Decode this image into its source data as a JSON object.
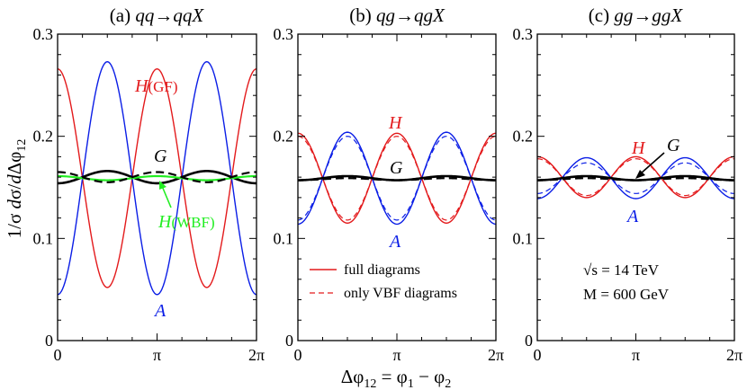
{
  "figure": {
    "ylabel": "1/σ dσ/dΔφ12",
    "xlabel": "Δφ12 = φ1 − φ2",
    "colors": {
      "H": "#e31a1c",
      "A": "#0b1ee6",
      "G": "#000000",
      "HVBF": "#22ee22"
    }
  },
  "chart_data": [
    {
      "type": "line",
      "panel": "a",
      "title": "(a) qq→qqX",
      "xlim": [
        0,
        6.2832
      ],
      "ylim": [
        0,
        0.3
      ],
      "xticks": [
        "0",
        "π",
        "2π"
      ],
      "yticks": [
        "0",
        "0.1",
        "0.2",
        "0.3"
      ],
      "series": [
        {
          "name": "H(GF)",
          "model": "cos2",
          "params": {
            "base": 0.159,
            "amp": 0.107
          },
          "color": "#e31a1c",
          "width": 1.4
        },
        {
          "name": "A",
          "model": "cos2",
          "params": {
            "base": 0.159,
            "amp": -0.114
          },
          "color": "#0b1ee6",
          "width": 1.4
        },
        {
          "name": "G",
          "model": "cos2",
          "params": {
            "base": 0.16,
            "amp": -0.006
          },
          "color": "#000000",
          "width": 2.6
        },
        {
          "name": "H(WBF)",
          "model": "cos2",
          "params": {
            "base": 0.159,
            "amp": 0.002
          },
          "color": "#22ee22",
          "width": 2.2
        },
        {
          "name": "G (only VBF diagrams)",
          "model": "cos2",
          "params": {
            "base": 0.16,
            "amp": 0.005
          },
          "color": "#000000",
          "width": 2.2,
          "dash": "9,5"
        }
      ],
      "annotations": {
        "H": "H",
        "H_sub": "(GF)",
        "G": "G",
        "A": "A",
        "HV": "H",
        "HV_sub": "(WBF)"
      }
    },
    {
      "type": "line",
      "panel": "b",
      "title": "(b) qg→qgX",
      "xlim": [
        0,
        6.2832
      ],
      "ylim": [
        0,
        0.3
      ],
      "xticks": [
        "0",
        "π",
        "2π"
      ],
      "yticks": [
        "0",
        "0.1",
        "0.2",
        "0.3"
      ],
      "series": [
        {
          "name": "H full",
          "model": "cos2",
          "params": {
            "base": 0.159,
            "amp": 0.044
          },
          "color": "#e31a1c",
          "width": 1.4
        },
        {
          "name": "H only VBF",
          "model": "cos2",
          "params": {
            "base": 0.159,
            "amp": 0.041
          },
          "color": "#e31a1c",
          "width": 1.2,
          "dash": "6,4"
        },
        {
          "name": "A full",
          "model": "cos2",
          "params": {
            "base": 0.159,
            "amp": -0.045
          },
          "color": "#0b1ee6",
          "width": 1.4
        },
        {
          "name": "A only VBF",
          "model": "cos2",
          "params": {
            "base": 0.159,
            "amp": -0.041
          },
          "color": "#0b1ee6",
          "width": 1.2,
          "dash": "6,4"
        },
        {
          "name": "G full",
          "model": "cos2",
          "params": {
            "base": 0.159,
            "amp": -0.002
          },
          "color": "#000000",
          "width": 2.6
        },
        {
          "name": "G only VBF",
          "model": "cos2",
          "params": {
            "base": 0.158,
            "amp": -0.001
          },
          "color": "#000000",
          "width": 2.2,
          "dash": "9,5"
        }
      ],
      "annotations": {
        "H": "H",
        "G": "G",
        "A": "A"
      },
      "legend": [
        "full diagrams",
        "only VBF diagrams"
      ]
    },
    {
      "type": "line",
      "panel": "c",
      "title": "(c) gg→ggX",
      "xlim": [
        0,
        6.2832
      ],
      "ylim": [
        0,
        0.3
      ],
      "xticks": [
        "0",
        "π",
        "2π"
      ],
      "yticks": [
        "0",
        "0.1",
        "0.2",
        "0.3"
      ],
      "series": [
        {
          "name": "H full",
          "model": "cos2",
          "params": {
            "base": 0.16,
            "amp": 0.02
          },
          "color": "#e31a1c",
          "width": 1.4
        },
        {
          "name": "H only VBF",
          "model": "cos2",
          "params": {
            "base": 0.16,
            "amp": 0.018
          },
          "color": "#e31a1c",
          "width": 1.2,
          "dash": "6,4"
        },
        {
          "name": "A full",
          "model": "cos2",
          "params": {
            "base": 0.159,
            "amp": -0.02
          },
          "color": "#0b1ee6",
          "width": 1.4
        },
        {
          "name": "A only VBF",
          "model": "cos2",
          "params": {
            "base": 0.159,
            "amp": -0.015
          },
          "color": "#0b1ee6",
          "width": 1.2,
          "dash": "6,4"
        },
        {
          "name": "G full",
          "model": "cos2",
          "params": {
            "base": 0.159,
            "amp": -0.002
          },
          "color": "#000000",
          "width": 2.6
        },
        {
          "name": "G only VBF",
          "model": "cos2",
          "params": {
            "base": 0.158,
            "amp": -0.001
          },
          "color": "#000000",
          "width": 2.2,
          "dash": "9,5"
        }
      ],
      "annotations": {
        "H": "H",
        "G": "G",
        "A": "A"
      },
      "info": [
        "√s = 14 TeV",
        "M = 600 GeV"
      ]
    }
  ]
}
